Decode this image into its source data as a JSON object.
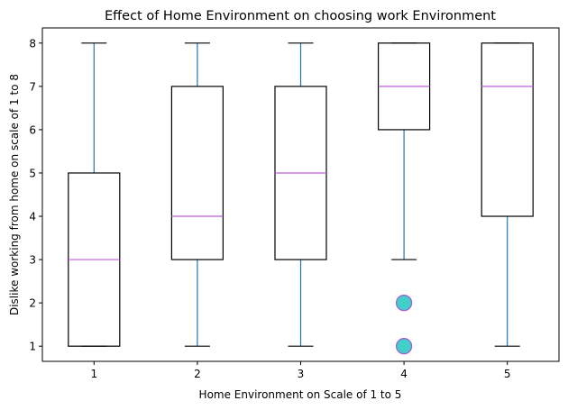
{
  "chart_data": {
    "type": "boxplot",
    "title": "Effect of Home Environment on choosing work Environment",
    "xlabel": "Home Environment on Scale of 1 to 5",
    "ylabel": "Dislike working from home on scale of 1 to 8",
    "categories": [
      "1",
      "2",
      "3",
      "4",
      "5"
    ],
    "ylim": [
      0.65,
      8.35
    ],
    "yticks": [
      1,
      2,
      3,
      4,
      5,
      6,
      7,
      8
    ],
    "grid": false,
    "boxes": [
      {
        "category": "1",
        "whisker_low": 1,
        "q1": 1,
        "median": 3,
        "q3": 5,
        "whisker_high": 8,
        "outliers": []
      },
      {
        "category": "2",
        "whisker_low": 1,
        "q1": 3,
        "median": 4,
        "q3": 7,
        "whisker_high": 8,
        "outliers": []
      },
      {
        "category": "3",
        "whisker_low": 1,
        "q1": 3,
        "median": 5,
        "q3": 7,
        "whisker_high": 8,
        "outliers": []
      },
      {
        "category": "4",
        "whisker_low": 3,
        "q1": 6,
        "median": 7,
        "q3": 8,
        "whisker_high": 8,
        "outliers": [
          2,
          1
        ]
      },
      {
        "category": "5",
        "whisker_low": 1,
        "q1": 4,
        "median": 7,
        "q3": 8,
        "whisker_high": 8,
        "outliers": []
      }
    ],
    "colors": {
      "box": "#000000",
      "whisker": "#1f77b4",
      "cap": "#000000",
      "median": "#bf5fdf",
      "outlier_fill": "#40d0c8",
      "outlier_edge": "#a35fd6"
    }
  }
}
